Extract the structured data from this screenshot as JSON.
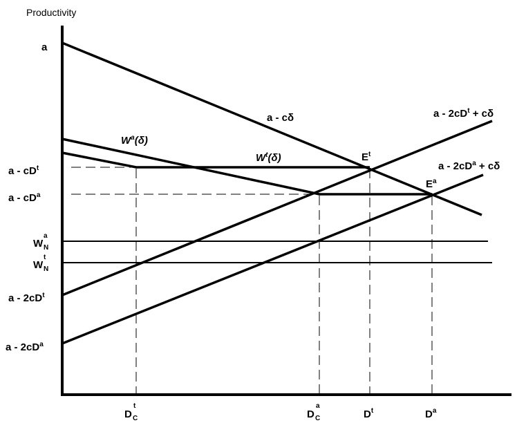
{
  "y_axis_title": "Productivity",
  "labels": {
    "a": "a",
    "a_minus_cdelta_prefix": "a - c",
    "delta": "δ",
    "a_minus_2cDt_plus_prefix": "a - 2cD",
    "t": "t",
    "a_sup": "a",
    "plus_cdelta": " + c",
    "Wa_W": "W",
    "Wa_sup": "a",
    "Wt_W": "W",
    "Wt_sup": "t",
    "paren_open": "(",
    "paren_close": ")",
    "Et_E": "E",
    "Et_sup": "t",
    "Ea_E": "E",
    "Ea_sup": "a",
    "a_cDt_prefix": "a - cD",
    "a_cDa_prefix": "a - cD",
    "WN_W": "W",
    "WN_sub": "N",
    "a_2cDt_prefix": "a - 2cD",
    "a_2cDa_prefix": "a - 2cD",
    "D": "D",
    "C_sub": "C"
  }
}
